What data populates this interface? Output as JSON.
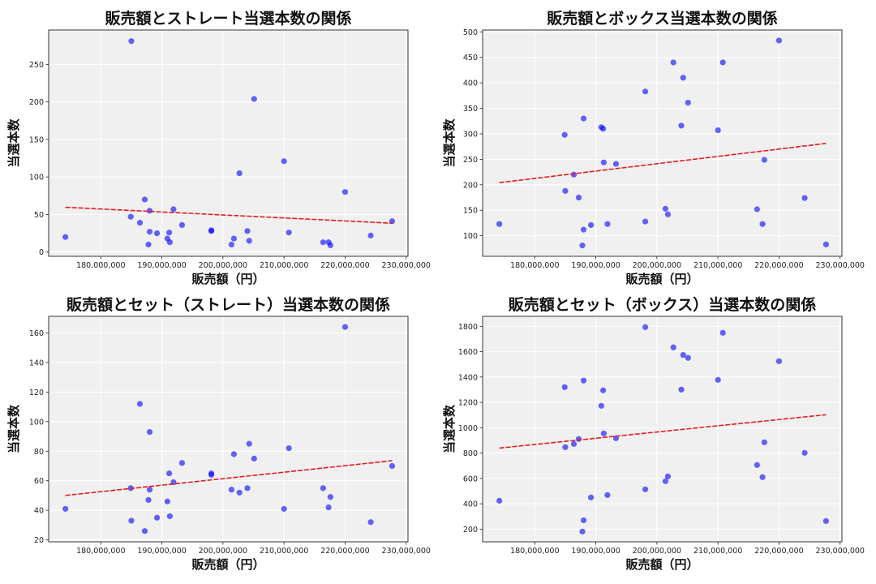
{
  "chart_data": [
    {
      "type": "scatter",
      "title": "販売額とストレート当選本数の関係",
      "xlabel": "販売額（円）",
      "ylabel": "当選本数",
      "xlim": [
        171460000,
        230300000
      ],
      "ylim": [
        -5.7,
        295.8
      ],
      "xticks": [
        180000000,
        190000000,
        200000000,
        210000000,
        220000000,
        230000000
      ],
      "xtick_labels": [
        "180,000,000",
        "190,000,000",
        "200,000,000",
        "210,000,000",
        "220,000,000",
        "230,000,000"
      ],
      "yticks": [
        0,
        50,
        100,
        150,
        200,
        250
      ],
      "grid": true,
      "trendline": true,
      "x": [
        174200000,
        184900000,
        185000000,
        186400000,
        187200000,
        187800000,
        188000000,
        188000000,
        189200000,
        190900000,
        191200000,
        191300000,
        191900000,
        193300000,
        198100000,
        198100000,
        201400000,
        201800000,
        202700000,
        204000000,
        204300000,
        205100000,
        210000000,
        210800000,
        216400000,
        217300000,
        217600000,
        220000000,
        224200000,
        227700000
      ],
      "y": [
        20,
        47,
        281,
        39,
        70,
        10,
        27,
        55,
        25,
        18,
        26,
        13,
        57,
        36,
        29,
        28,
        10,
        18,
        105,
        28,
        15,
        204,
        121,
        26,
        13,
        13,
        9,
        80,
        22,
        41
      ]
    },
    {
      "type": "scatter",
      "title": "販売額とボックス当選本数の関係",
      "xlabel": "販売額（円）",
      "ylabel": "当選本数",
      "xlim": [
        171460000,
        230300000
      ],
      "ylim": [
        59.7,
        503.6
      ],
      "xticks": [
        180000000,
        190000000,
        200000000,
        210000000,
        220000000,
        230000000
      ],
      "xtick_labels": [
        "180,000,000",
        "190,000,000",
        "200,000,000",
        "210,000,000",
        "220,000,000",
        "230,000,000"
      ],
      "yticks": [
        100,
        150,
        200,
        250,
        300,
        350,
        400,
        450,
        500
      ],
      "grid": true,
      "trendline": true,
      "x": [
        174200000,
        184900000,
        185000000,
        186400000,
        187200000,
        187800000,
        188000000,
        188000000,
        189200000,
        190900000,
        191200000,
        191300000,
        191900000,
        193300000,
        198100000,
        198100000,
        201400000,
        201800000,
        202700000,
        204000000,
        204300000,
        205100000,
        210000000,
        210800000,
        216400000,
        217300000,
        217600000,
        220000000,
        224200000,
        227700000
      ],
      "y": [
        123,
        298,
        188,
        220,
        175,
        81,
        330,
        112,
        121,
        313,
        310,
        244,
        123,
        241,
        383,
        128,
        153,
        142,
        440,
        316,
        410,
        361,
        307,
        440,
        152,
        123,
        249,
        483,
        174,
        83
      ]
    },
    {
      "type": "scatter",
      "title": "販売額とセット（ストレート）当選本数の関係",
      "xlabel": "販売額（円）",
      "ylabel": "当選本数",
      "xlim": [
        171460000,
        230300000
      ],
      "ylim": [
        18.7,
        171.2
      ],
      "xticks": [
        180000000,
        190000000,
        200000000,
        210000000,
        220000000,
        230000000
      ],
      "xtick_labels": [
        "180,000,000",
        "190,000,000",
        "200,000,000",
        "210,000,000",
        "220,000,000",
        "230,000,000"
      ],
      "yticks": [
        20,
        40,
        60,
        80,
        100,
        120,
        140,
        160
      ],
      "grid": true,
      "trendline": true,
      "x": [
        174200000,
        184900000,
        185000000,
        186400000,
        187200000,
        187800000,
        188000000,
        188000000,
        189200000,
        190900000,
        191200000,
        191300000,
        191900000,
        193300000,
        198100000,
        198100000,
        201400000,
        201800000,
        202700000,
        204000000,
        204300000,
        205100000,
        210000000,
        210800000,
        216400000,
        217300000,
        217600000,
        220000000,
        224200000,
        227700000
      ],
      "y": [
        41,
        55,
        33,
        112,
        26,
        47,
        54,
        93,
        35,
        46,
        65,
        36,
        59,
        72,
        65,
        64,
        54,
        78,
        52,
        55,
        85,
        75,
        41,
        82,
        55,
        42,
        49,
        164,
        32,
        70
      ]
    },
    {
      "type": "scatter",
      "title": "販売額とセット（ボックス）当選本数の関係",
      "xlabel": "販売額（円）",
      "ylabel": "当選本数",
      "xlim": [
        171460000,
        230300000
      ],
      "ylim": [
        100,
        1879
      ],
      "xticks": [
        180000000,
        190000000,
        200000000,
        210000000,
        220000000,
        230000000
      ],
      "xtick_labels": [
        "180,000,000",
        "190,000,000",
        "200,000,000",
        "210,000,000",
        "220,000,000",
        "230,000,000"
      ],
      "yticks": [
        200,
        400,
        600,
        800,
        1000,
        1200,
        1400,
        1600,
        1800
      ],
      "grid": true,
      "trendline": true,
      "x": [
        174200000,
        184900000,
        185000000,
        186400000,
        187200000,
        187800000,
        188000000,
        188000000,
        189200000,
        190900000,
        191200000,
        191300000,
        191900000,
        193300000,
        198100000,
        198100000,
        201400000,
        201800000,
        202700000,
        204000000,
        204300000,
        205100000,
        210000000,
        210800000,
        216400000,
        217300000,
        217600000,
        220000000,
        224200000,
        227700000
      ],
      "y": [
        424,
        1320,
        847,
        872,
        911,
        181,
        1372,
        270,
        450,
        1173,
        1295,
        955,
        469,
        917,
        1794,
        514,
        578,
        616,
        1634,
        1301,
        1574,
        1551,
        1378,
        1749,
        706,
        610,
        885,
        1525,
        802,
        264
      ]
    }
  ],
  "colors": {
    "points": "#0000ff",
    "trendline": "#e8191a",
    "axes_bg": "#f0f0f0",
    "grid": "#ffffff"
  }
}
